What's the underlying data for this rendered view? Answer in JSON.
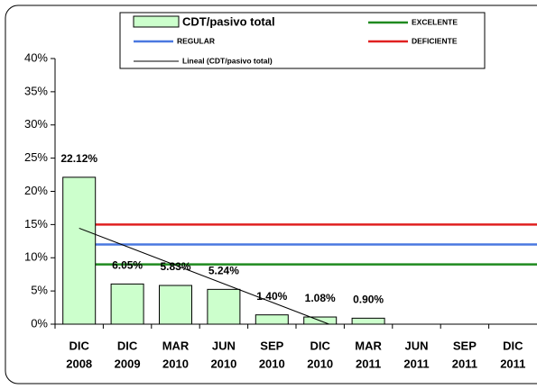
{
  "chart_data": {
    "type": "bar",
    "categories": [
      [
        "DIC",
        "2008"
      ],
      [
        "DIC",
        "2009"
      ],
      [
        "MAR",
        "2010"
      ],
      [
        "JUN",
        "2010"
      ],
      [
        "SEP",
        "2010"
      ],
      [
        "DIC",
        "2010"
      ],
      [
        "MAR",
        "2011"
      ],
      [
        "JUN",
        "2011"
      ],
      [
        "SEP",
        "2011"
      ],
      [
        "DIC",
        "2011"
      ]
    ],
    "series": [
      {
        "name": "CDT/pasivo total",
        "color": "#ccffcc",
        "values": [
          22.12,
          6.05,
          5.83,
          5.24,
          1.4,
          1.08,
          0.9,
          null,
          null,
          null
        ],
        "value_labels": [
          "22.12%",
          "6.05%",
          "5.83%",
          "5.24%",
          "1.40%",
          "1.08%",
          "0.90%",
          null,
          null,
          null
        ]
      }
    ],
    "reference_lines": [
      {
        "name": "EXCELENTE",
        "color": "#1f8a1f",
        "value": 9
      },
      {
        "name": "REGULAR",
        "color": "#4a78e0",
        "value": 12
      },
      {
        "name": "DEFICIENTE",
        "color": "#e02020",
        "value": 15
      }
    ],
    "trend": {
      "name": "Lineal (CDT/pasivo total)",
      "color": "#000000"
    },
    "ylim": [
      0,
      40
    ],
    "yticks": [
      {
        "value": 0,
        "label": "0%"
      },
      {
        "value": 5,
        "label": "5%"
      },
      {
        "value": 10,
        "label": "10%"
      },
      {
        "value": 15,
        "label": "15%"
      },
      {
        "value": 20,
        "label": "20%"
      },
      {
        "value": 25,
        "label": "25%"
      },
      {
        "value": 30,
        "label": "30%"
      },
      {
        "value": 35,
        "label": "35%"
      },
      {
        "value": 40,
        "label": "40%"
      }
    ],
    "grid": false
  }
}
